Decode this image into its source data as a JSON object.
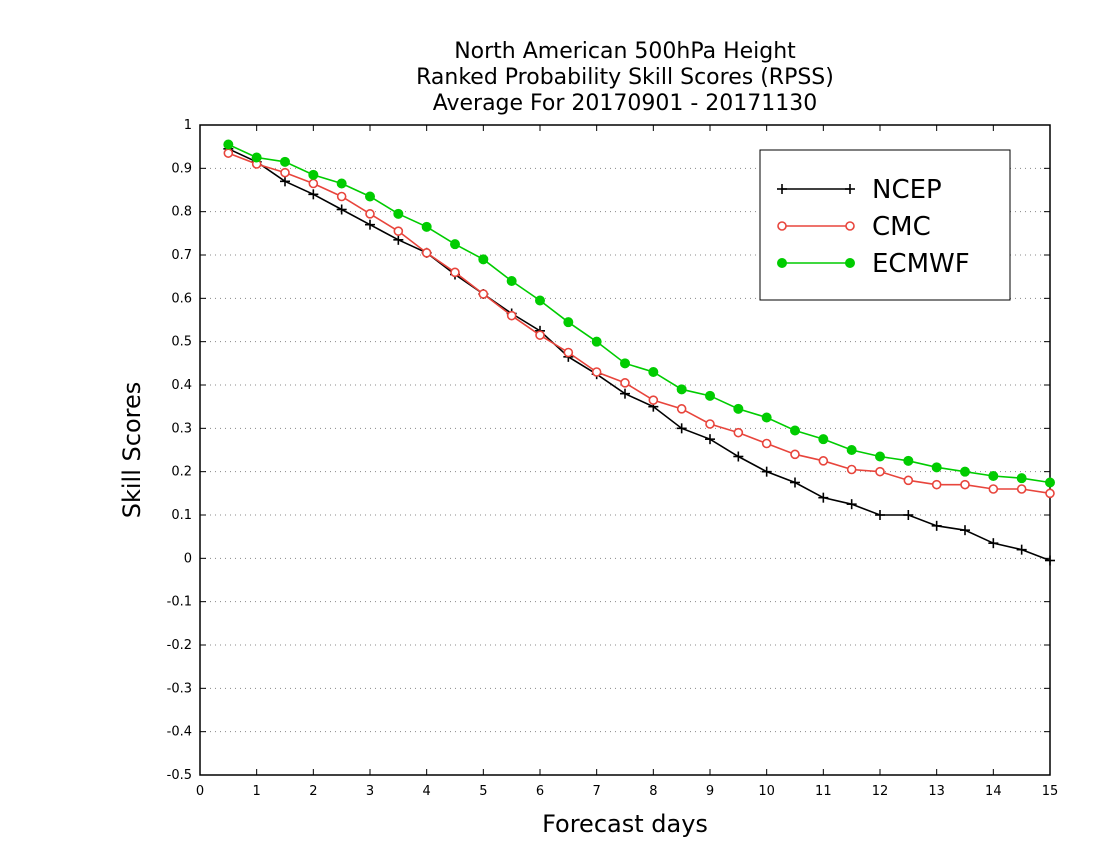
{
  "chart_data": {
    "type": "line",
    "title": [
      "North American 500hPa Height",
      "Ranked Probability Skill Scores (RPSS)",
      "Average For 20170901 - 20171130"
    ],
    "xlabel": "Forecast days",
    "ylabel": "Skill Scores",
    "xlim": [
      0,
      15
    ],
    "ylim": [
      -0.5,
      1
    ],
    "xticks": [
      "0",
      "1",
      "2",
      "3",
      "4",
      "5",
      "6",
      "7",
      "8",
      "9",
      "10",
      "11",
      "12",
      "13",
      "14",
      "15"
    ],
    "yticks": [
      "-0.5",
      "-0.4",
      "-0.3",
      "-0.2",
      "-0.1",
      "0",
      "0.1",
      "0.2",
      "0.3",
      "0.4",
      "0.5",
      "0.6",
      "0.7",
      "0.8",
      "0.9",
      "1"
    ],
    "grid": "horizontal dotted",
    "legend_position": "top-right",
    "x": [
      0.5,
      1,
      1.5,
      2,
      2.5,
      3,
      3.5,
      4,
      4.5,
      5,
      5.5,
      6,
      6.5,
      7,
      7.5,
      8,
      8.5,
      9,
      9.5,
      10,
      10.5,
      11,
      11.5,
      12,
      12.5,
      13,
      13.5,
      14,
      14.5,
      15
    ],
    "series": [
      {
        "name": "NCEP",
        "color": "#000000",
        "marker": "plus",
        "values": [
          0.945,
          0.915,
          0.87,
          0.84,
          0.805,
          0.77,
          0.735,
          0.705,
          0.655,
          0.61,
          0.565,
          0.525,
          0.465,
          0.425,
          0.38,
          0.35,
          0.3,
          0.275,
          0.235,
          0.2,
          0.175,
          0.14,
          0.125,
          0.1,
          0.1,
          0.075,
          0.065,
          0.035,
          0.02,
          -0.005
        ]
      },
      {
        "name": "CMC",
        "color": "#e8453c",
        "marker": "open-circle",
        "values": [
          0.935,
          0.91,
          0.89,
          0.865,
          0.835,
          0.795,
          0.755,
          0.705,
          0.66,
          0.61,
          0.56,
          0.515,
          0.475,
          0.43,
          0.405,
          0.365,
          0.345,
          0.31,
          0.29,
          0.265,
          0.24,
          0.225,
          0.205,
          0.2,
          0.18,
          0.17,
          0.17,
          0.16,
          0.16,
          0.15
        ]
      },
      {
        "name": "ECMWF",
        "color": "#00cc00",
        "marker": "filled-circle",
        "values": [
          0.955,
          0.925,
          0.915,
          0.885,
          0.865,
          0.835,
          0.795,
          0.765,
          0.725,
          0.69,
          0.64,
          0.595,
          0.545,
          0.5,
          0.45,
          0.43,
          0.39,
          0.375,
          0.345,
          0.325,
          0.295,
          0.275,
          0.25,
          0.235,
          0.225,
          0.21,
          0.2,
          0.19,
          0.185,
          0.175
        ]
      }
    ]
  }
}
